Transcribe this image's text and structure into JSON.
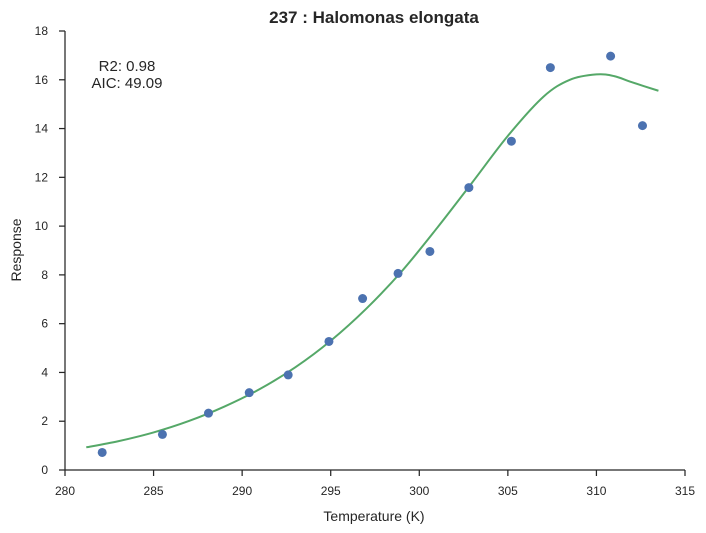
{
  "chart_data": {
    "type": "scatter",
    "title": "237 : Halomonas elongata",
    "xlabel": "Temperature (K)",
    "ylabel": "Response",
    "xlim": [
      280,
      315
    ],
    "ylim": [
      0,
      18
    ],
    "xticks": [
      280,
      285,
      290,
      295,
      300,
      305,
      310,
      315
    ],
    "yticks": [
      0,
      2,
      4,
      6,
      8,
      10,
      12,
      14,
      16,
      18
    ],
    "grid": false,
    "annotation": {
      "line1": "R2: 0.98",
      "line2": "AIC: 49.09"
    },
    "colors": {
      "points": "#4c72b0",
      "fit": "#55a868"
    },
    "series": [
      {
        "kind": "points",
        "x": [
          282.1,
          285.5,
          288.1,
          290.4,
          292.6,
          294.9,
          296.8,
          298.8,
          300.6,
          302.8,
          305.2,
          307.4,
          310.8,
          312.6
        ],
        "y": [
          0.72,
          1.46,
          2.33,
          3.17,
          3.9,
          5.27,
          7.03,
          8.06,
          8.96,
          11.58,
          13.48,
          16.5,
          16.97,
          14.12
        ]
      },
      {
        "kind": "fit",
        "x": [
          281.2,
          283,
          285,
          287,
          289,
          291,
          293,
          295,
          297,
          299,
          301,
          303,
          305,
          307,
          308.5,
          310,
          311,
          312,
          313.5
        ],
        "y": [
          0.93,
          1.18,
          1.54,
          2.01,
          2.6,
          3.32,
          4.21,
          5.3,
          6.61,
          8.14,
          9.92,
          11.8,
          13.7,
          15.3,
          16.0,
          16.22,
          16.15,
          15.9,
          15.55
        ]
      }
    ]
  }
}
